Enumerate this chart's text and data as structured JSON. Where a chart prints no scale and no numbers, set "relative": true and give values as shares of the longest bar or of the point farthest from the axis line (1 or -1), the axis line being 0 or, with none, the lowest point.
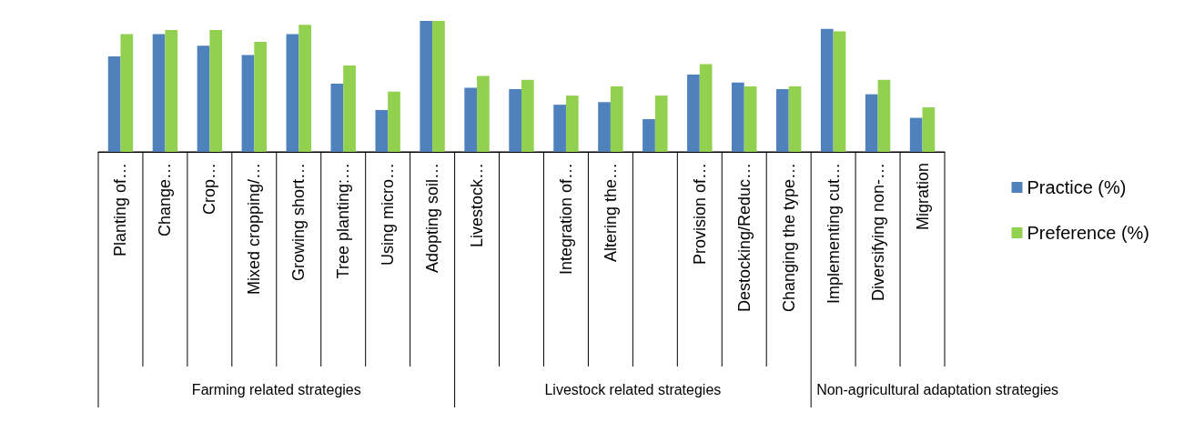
{
  "chart_data": {
    "type": "bar",
    "relative": true,
    "categories": [
      "Planting of…",
      "Change…",
      "Crop…",
      "Mixed cropping/…",
      "Growing short…",
      "Tree planting:…",
      "Using micro…",
      "Adopting soil…",
      "Livestock…",
      null,
      "Integration of…",
      "Altering the…",
      null,
      "Provision of…",
      "Destocking/Reduc…",
      "Changing the type…",
      "Implementing cut…",
      "Diversifying non-…",
      "Migration"
    ],
    "series": [
      {
        "name": "Practice (%)",
        "color": "#4f81bd",
        "values": [
          0.73,
          0.9,
          0.81,
          0.74,
          0.9,
          0.52,
          0.32,
          1,
          0.49,
          0.48,
          0.36,
          0.38,
          0.25,
          0.59,
          0.53,
          0.48,
          0.94,
          0.44,
          0.26
        ]
      },
      {
        "name": "Preference (%)",
        "color": "#92d050",
        "values": [
          0.9,
          0.93,
          0.93,
          0.84,
          0.97,
          0.66,
          0.46,
          1,
          0.58,
          0.55,
          0.43,
          0.5,
          0.43,
          0.67,
          0.5,
          0.5,
          0.92,
          0.55,
          0.34
        ]
      }
    ],
    "annotations": [
      "Farming related strategies",
      "Livestock related strategies",
      "Non-agricultural adaptation strategies"
    ],
    "legend": "right"
  }
}
